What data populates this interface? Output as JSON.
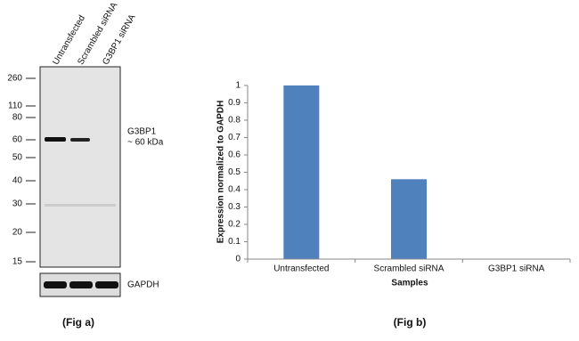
{
  "blot": {
    "lane_labels": [
      "Untransfected",
      "Scrambled siRNA",
      "G3BP1 siRNA"
    ],
    "markers": [
      "260",
      "110",
      "80",
      "60",
      "50",
      "40",
      "30",
      "20",
      "15"
    ],
    "target_label": "G3BP1",
    "target_size": "~ 60 kDa",
    "loading_control": "GAPDH",
    "caption": "(Fig a)"
  },
  "chart_data": {
    "type": "bar",
    "caption": "(Fig b)",
    "x_label": "Samples",
    "y_label": "Expression  normalized to GAPDH",
    "categories": [
      "Untransfected",
      "Scrambled siRNA",
      "G3BP1 siRNA"
    ],
    "values": [
      1,
      0.46,
      0
    ],
    "color": "#4f81bd",
    "ylim": [
      0,
      1
    ],
    "yticks": [
      0,
      0.1,
      0.2,
      0.3,
      0.4,
      0.5,
      0.6,
      0.7,
      0.8,
      0.9,
      1
    ]
  }
}
